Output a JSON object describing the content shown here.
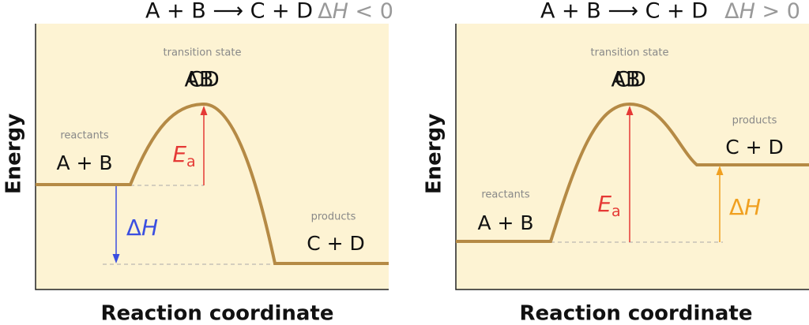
{
  "panels": [
    {
      "equation": "A + B ⟶ C + D",
      "condition": {
        "delta": "Δ",
        "symbol": "H",
        "relation": " < 0"
      },
      "transition_state": {
        "caption": "transition state",
        "reactant_label": "AB",
        "product_label": "CD"
      },
      "reactants": {
        "caption": "reactants",
        "label": "A + B"
      },
      "products": {
        "caption": "products",
        "label": "C + D"
      },
      "activation_energy": {
        "symbol": "E",
        "subscript": "a"
      },
      "enthalpy": {
        "delta": "Δ",
        "symbol": "H"
      },
      "y_axis": "Energy",
      "x_axis": "Reaction coordinate"
    },
    {
      "equation": "A + B ⟶ C + D",
      "condition": {
        "delta": "Δ",
        "symbol": "H",
        "relation": " > 0"
      },
      "transition_state": {
        "caption": "transition state",
        "reactant_label": "AB",
        "product_label": "CD"
      },
      "reactants": {
        "caption": "reactants",
        "label": "A + B"
      },
      "products": {
        "caption": "products",
        "label": "C + D"
      },
      "activation_energy": {
        "symbol": "E",
        "subscript": "a"
      },
      "enthalpy": {
        "delta": "Δ",
        "symbol": "H"
      },
      "y_axis": "Energy",
      "x_axis": "Reaction coordinate"
    }
  ]
}
